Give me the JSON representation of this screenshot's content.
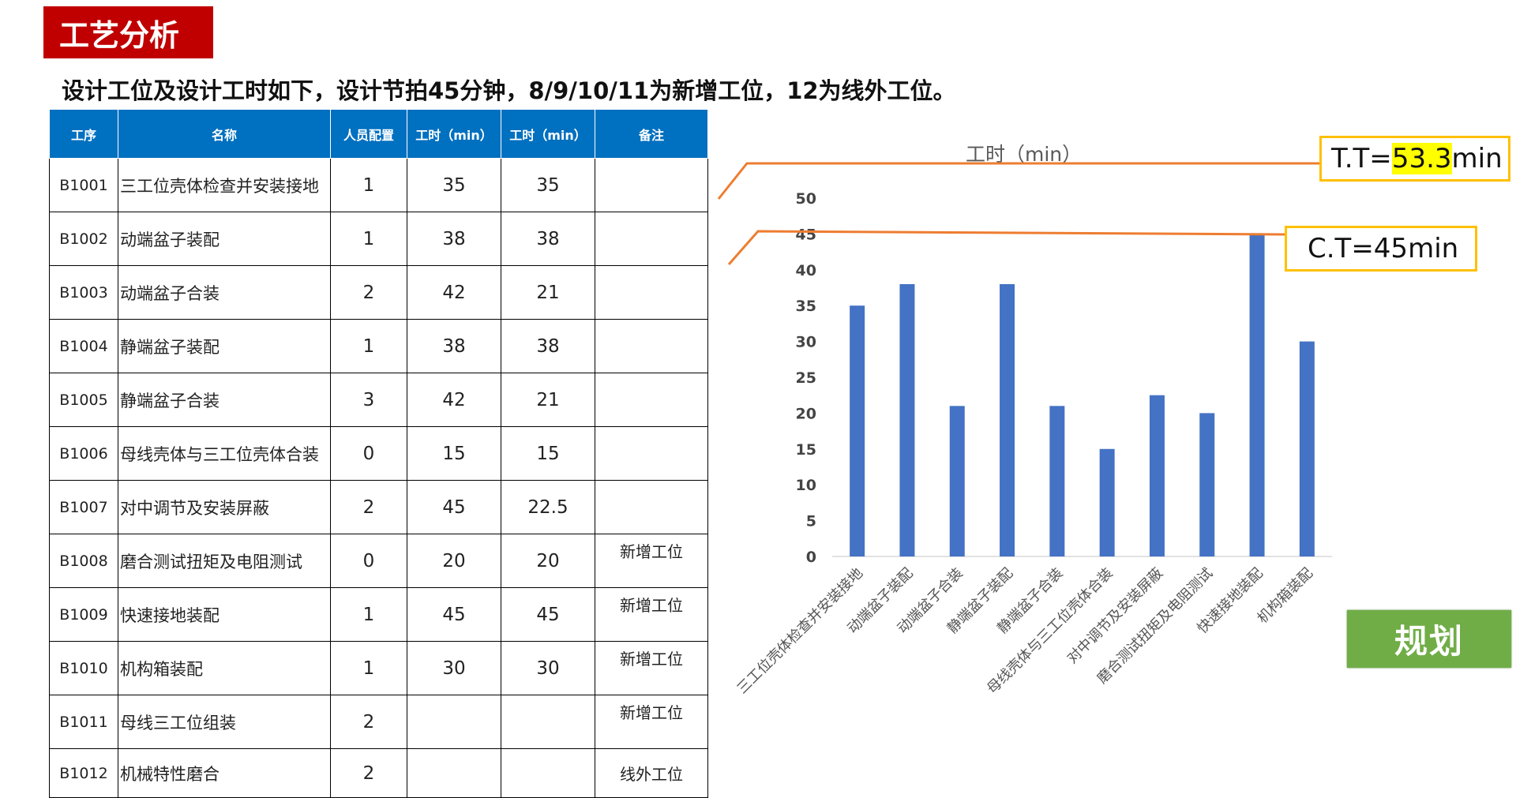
{
  "header": {
    "title": "工艺分析",
    "subtitle": "设计工位及设计工时如下，设计节拍45分钟，8/9/10/11为新增工位，12为线外工位。"
  },
  "table": {
    "columns": [
      "工序",
      "名称",
      "人员配置",
      "工时（min）",
      "工时（min）",
      "备注"
    ],
    "rows": [
      [
        "B1001",
        "三工位壳体检查并安装接地",
        "1",
        "35",
        "35",
        ""
      ],
      [
        "B1002",
        "动端盆子装配",
        "1",
        "38",
        "38",
        ""
      ],
      [
        "B1003",
        "动端盆子合装",
        "2",
        "42",
        "21",
        ""
      ],
      [
        "B1004",
        "静端盆子装配",
        "1",
        "38",
        "38",
        ""
      ],
      [
        "B1005",
        "静端盆子合装",
        "3",
        "42",
        "21",
        ""
      ],
      [
        "B1006",
        "母线壳体与三工位壳体合装",
        "0",
        "15",
        "15",
        ""
      ],
      [
        "B1007",
        "对中调节及安装屏蔽",
        "2",
        "45",
        "22.5",
        ""
      ],
      [
        "B1008",
        "磨合测试扭矩及电阻测试",
        "0",
        "20",
        "20",
        "新增工位"
      ],
      [
        "B1009",
        "快速接地装配",
        "1",
        "45",
        "45",
        "新增工位"
      ],
      [
        "B1010",
        "机构箱装配",
        "1",
        "30",
        "30",
        "新增工位"
      ],
      [
        "B1011",
        "母线三工位组装",
        "2",
        "",
        "",
        "新增工位"
      ],
      [
        "B1012",
        "机械特性磨合",
        "2",
        "",
        "",
        "线外工位"
      ]
    ]
  },
  "chart_data": {
    "type": "bar",
    "title": "工时（min）",
    "categories": [
      "三工位壳体检查并安装接地",
      "动端盆子装配",
      "动端盆子合装",
      "静端盆子装配",
      "静端盆子合装",
      "母线壳体与三工位壳体合装",
      "对中调节及安装屏蔽",
      "磨合测试扭矩及电阻测试",
      "快速接地装配",
      "机构箱装配"
    ],
    "values": [
      35,
      38,
      21,
      38,
      21,
      15,
      22.5,
      20,
      45,
      30
    ],
    "ylim": [
      0,
      50
    ],
    "yticks": [
      "0",
      "5",
      "10",
      "15",
      "20",
      "25",
      "30",
      "35",
      "40",
      "45",
      "50"
    ],
    "grid": false,
    "bar_color": "#4472c4",
    "reference_lines": [
      {
        "value": 53.3,
        "color": "#ed7d31"
      },
      {
        "value": 45,
        "color": "#ed7d31"
      }
    ]
  },
  "annotations": {
    "tt_prefix": "T.T=",
    "tt_value": "53.3",
    "tt_suffix": "min",
    "ct_label": "C.T=45min"
  },
  "buttons": {
    "plan_label": "规划"
  },
  "colors": {
    "title_bg": "#c00000",
    "table_header_bg": "#0070c0",
    "line_color": "#ed7d31",
    "box_border": "#ffc000",
    "highlight": "#ffff00",
    "plan_bg": "#70ad47"
  }
}
